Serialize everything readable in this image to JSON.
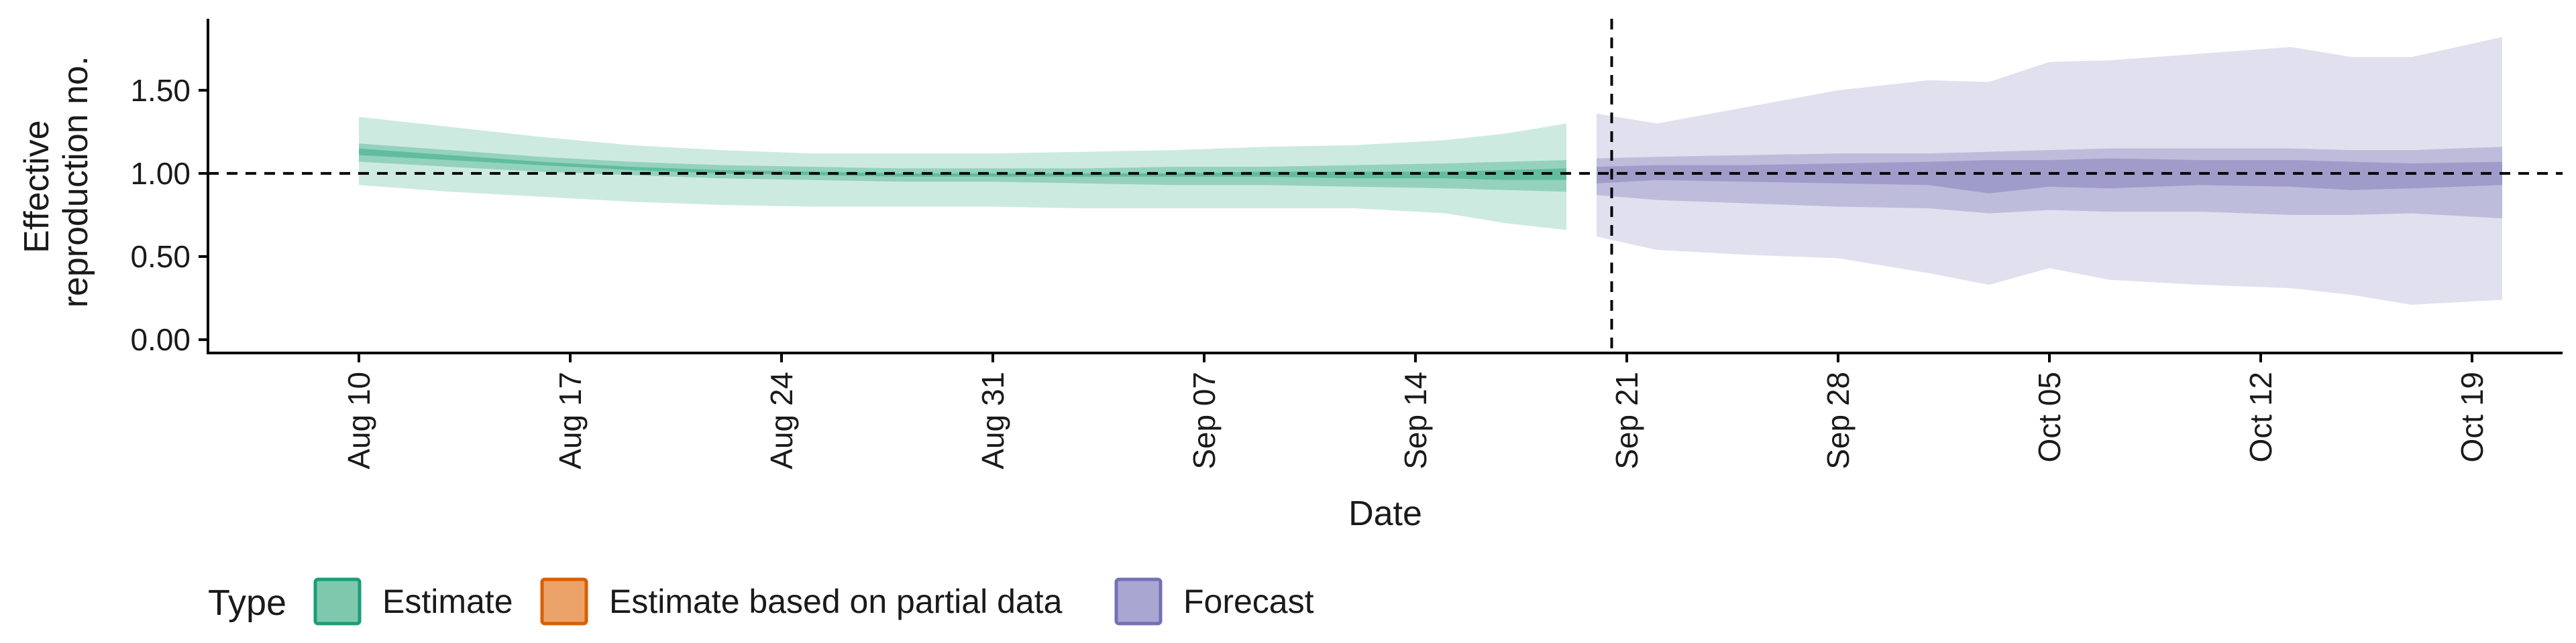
{
  "chart_data": {
    "type": "area",
    "xlabel": "Date",
    "ylabel": [
      "Effective",
      "reproduction no."
    ],
    "ylim": [
      -0.08,
      1.93
    ],
    "yticks": [
      "0.00",
      "0.50",
      "1.00",
      "1.50"
    ],
    "xlim_dates": [
      "2020-08-05",
      "2020-10-22"
    ],
    "xticks": [
      {
        "date": "2020-08-10",
        "label": "Aug 10"
      },
      {
        "date": "2020-08-17",
        "label": "Aug 17"
      },
      {
        "date": "2020-08-24",
        "label": "Aug 24"
      },
      {
        "date": "2020-08-31",
        "label": "Aug 31"
      },
      {
        "date": "2020-09-07",
        "label": "Sep 07"
      },
      {
        "date": "2020-09-14",
        "label": "Sep 14"
      },
      {
        "date": "2020-09-21",
        "label": "Sep 21"
      },
      {
        "date": "2020-09-28",
        "label": "Sep 28"
      },
      {
        "date": "2020-10-05",
        "label": "Oct 05"
      },
      {
        "date": "2020-10-12",
        "label": "Oct 12"
      },
      {
        "date": "2020-10-19",
        "label": "Oct 19"
      }
    ],
    "reference_line": {
      "y": 1.0,
      "style": "dashed"
    },
    "vertical_line": {
      "date": "2020-09-20",
      "style": "dashed"
    },
    "legend": {
      "title": "Type",
      "position": "bottom-left",
      "items": [
        {
          "label": "Estimate",
          "fill": "#7fc8ae",
          "stroke": "#1b9e77"
        },
        {
          "label": "Estimate based on partial data",
          "fill": "#eca36a",
          "stroke": "#d95f02"
        },
        {
          "label": "Forecast",
          "fill": "#aaa6d2",
          "stroke": "#7570b3"
        }
      ]
    },
    "grid": false,
    "series": [
      {
        "name": "Estimate",
        "color": "#1b9e77",
        "x": [
          "2020-08-10",
          "2020-08-13",
          "2020-08-16",
          "2020-08-19",
          "2020-08-22",
          "2020-08-25",
          "2020-08-28",
          "2020-08-31",
          "2020-09-03",
          "2020-09-06",
          "2020-09-09",
          "2020-09-12",
          "2020-09-15",
          "2020-09-17",
          "2020-09-19"
        ],
        "ci90_lower": [
          0.93,
          0.89,
          0.86,
          0.83,
          0.81,
          0.8,
          0.8,
          0.8,
          0.79,
          0.79,
          0.79,
          0.79,
          0.76,
          0.7,
          0.66
        ],
        "ci90_upper": [
          1.34,
          1.28,
          1.22,
          1.17,
          1.14,
          1.12,
          1.12,
          1.12,
          1.13,
          1.14,
          1.16,
          1.17,
          1.2,
          1.24,
          1.3
        ],
        "ci50_lower": [
          1.07,
          1.04,
          1.01,
          0.99,
          0.97,
          0.96,
          0.95,
          0.95,
          0.94,
          0.93,
          0.93,
          0.92,
          0.91,
          0.9,
          0.89
        ],
        "ci50_upper": [
          1.18,
          1.14,
          1.1,
          1.07,
          1.05,
          1.04,
          1.03,
          1.03,
          1.03,
          1.04,
          1.04,
          1.05,
          1.06,
          1.07,
          1.08
        ],
        "ci20_lower": [
          1.11,
          1.08,
          1.05,
          1.02,
          1.0,
          0.99,
          0.98,
          0.98,
          0.98,
          0.98,
          0.98,
          0.97,
          0.97,
          0.96,
          0.96
        ],
        "ci20_upper": [
          1.15,
          1.11,
          1.07,
          1.04,
          1.02,
          1.01,
          1.0,
          1.0,
          1.0,
          1.0,
          1.01,
          1.01,
          1.01,
          1.02,
          1.03
        ]
      },
      {
        "name": "Forecast",
        "color": "#7570b3",
        "x": [
          "2020-09-20",
          "2020-09-22",
          "2020-09-25",
          "2020-09-28",
          "2020-10-01",
          "2020-10-03",
          "2020-10-05",
          "2020-10-07",
          "2020-10-10",
          "2020-10-13",
          "2020-10-15",
          "2020-10-17",
          "2020-10-20"
        ],
        "ci90_lower": [
          0.62,
          0.54,
          0.51,
          0.49,
          0.4,
          0.33,
          0.43,
          0.36,
          0.33,
          0.31,
          0.27,
          0.21,
          0.24
        ],
        "ci90_upper": [
          1.36,
          1.3,
          1.4,
          1.5,
          1.56,
          1.55,
          1.67,
          1.68,
          1.72,
          1.76,
          1.7,
          1.7,
          1.82
        ],
        "ci50_lower": [
          0.87,
          0.84,
          0.82,
          0.8,
          0.79,
          0.76,
          0.78,
          0.77,
          0.77,
          0.75,
          0.75,
          0.76,
          0.73
        ],
        "ci50_upper": [
          1.09,
          1.1,
          1.11,
          1.12,
          1.12,
          1.13,
          1.14,
          1.15,
          1.15,
          1.15,
          1.14,
          1.14,
          1.16
        ],
        "ci20_lower": [
          0.94,
          0.96,
          0.95,
          0.94,
          0.93,
          0.88,
          0.92,
          0.91,
          0.93,
          0.92,
          0.9,
          0.91,
          0.93
        ],
        "ci20_upper": [
          1.04,
          1.05,
          1.05,
          1.06,
          1.07,
          1.08,
          1.08,
          1.09,
          1.08,
          1.08,
          1.07,
          1.06,
          1.07
        ]
      }
    ]
  }
}
